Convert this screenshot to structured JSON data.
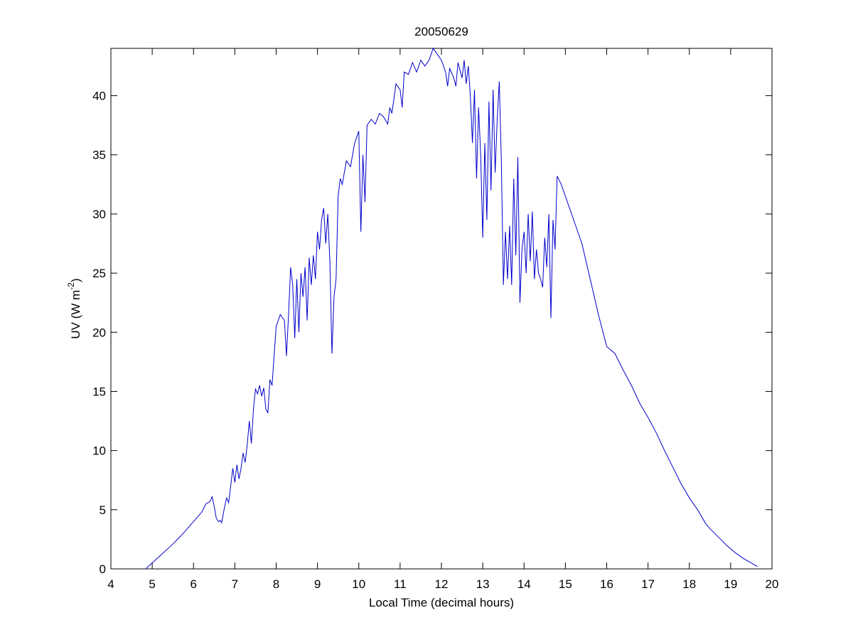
{
  "chart_data": {
    "type": "line",
    "title": "20050629",
    "xlabel": "Local Time (decimal hours)",
    "ylabel": [
      "UV (W m",
      "-2",
      ")"
    ],
    "xlim": [
      4,
      20
    ],
    "xticks": [
      4,
      5,
      6,
      7,
      8,
      9,
      10,
      11,
      12,
      13,
      14,
      15,
      16,
      17,
      18,
      19,
      20
    ],
    "ylim": [
      0,
      44
    ],
    "yticks": [
      0,
      5,
      10,
      15,
      20,
      25,
      30,
      35,
      40
    ],
    "series": [
      {
        "color": "#0000cc",
        "x": [
          4.85,
          4.9,
          5.0,
          5.25,
          5.5,
          5.75,
          6.0,
          6.2,
          6.3,
          6.4,
          6.45,
          6.5,
          6.55,
          6.6,
          6.65,
          6.68,
          6.75,
          6.8,
          6.85,
          6.9,
          6.95,
          7.0,
          7.05,
          7.1,
          7.15,
          7.2,
          7.25,
          7.3,
          7.35,
          7.4,
          7.45,
          7.5,
          7.55,
          7.6,
          7.65,
          7.7,
          7.75,
          7.8,
          7.85,
          7.9,
          7.95,
          8.0,
          8.1,
          8.2,
          8.25,
          8.3,
          8.35,
          8.4,
          8.45,
          8.5,
          8.55,
          8.6,
          8.65,
          8.7,
          8.75,
          8.8,
          8.85,
          8.9,
          8.95,
          9.0,
          9.05,
          9.1,
          9.15,
          9.2,
          9.25,
          9.3,
          9.35,
          9.4,
          9.45,
          9.5,
          9.55,
          9.6,
          9.7,
          9.8,
          9.85,
          9.9,
          10.0,
          10.05,
          10.1,
          10.15,
          10.2,
          10.3,
          10.4,
          10.5,
          10.6,
          10.7,
          10.75,
          10.8,
          10.9,
          11.0,
          11.05,
          11.1,
          11.2,
          11.3,
          11.4,
          11.5,
          11.6,
          11.7,
          11.8,
          11.9,
          12.0,
          12.1,
          12.15,
          12.2,
          12.3,
          12.35,
          12.4,
          12.5,
          12.55,
          12.6,
          12.65,
          12.7,
          12.75,
          12.8,
          12.85,
          12.9,
          12.95,
          13.0,
          13.05,
          13.1,
          13.15,
          13.2,
          13.25,
          13.3,
          13.35,
          13.4,
          13.45,
          13.5,
          13.55,
          13.6,
          13.65,
          13.7,
          13.75,
          13.8,
          13.85,
          13.9,
          13.95,
          14.0,
          14.05,
          14.1,
          14.15,
          14.2,
          14.25,
          14.3,
          14.35,
          14.4,
          14.45,
          14.5,
          14.55,
          14.6,
          14.65,
          14.7,
          14.75,
          14.8,
          14.9,
          15.0,
          15.2,
          15.4,
          15.6,
          15.8,
          16.0,
          16.2,
          16.4,
          16.6,
          16.8,
          17.0,
          17.2,
          17.4,
          17.6,
          17.8,
          18.0,
          18.2,
          18.4,
          18.5,
          18.7,
          18.9,
          19.1,
          19.3,
          19.5,
          19.65
        ],
        "values": [
          0,
          0.2,
          0.5,
          1.3,
          2.1,
          3.0,
          4.0,
          4.8,
          5.5,
          5.7,
          6.1,
          5.3,
          4.3,
          4.0,
          4.1,
          3.9,
          5.2,
          6.0,
          5.6,
          7.0,
          8.5,
          7.3,
          8.8,
          7.6,
          8.5,
          9.8,
          9.0,
          10.5,
          12.5,
          10.6,
          13.5,
          15.2,
          14.8,
          15.5,
          14.6,
          15.3,
          13.5,
          13.2,
          16.0,
          15.5,
          18.0,
          20.5,
          21.5,
          21.0,
          18.0,
          21.5,
          25.5,
          24.0,
          19.5,
          24.5,
          20.0,
          25.0,
          23.0,
          25.5,
          21.0,
          26.3,
          24.0,
          26.5,
          24.5,
          28.5,
          27.0,
          29.5,
          30.5,
          27.5,
          30.0,
          26.0,
          18.2,
          23.0,
          24.5,
          31.5,
          33.0,
          32.5,
          34.5,
          34.0,
          35.0,
          36.0,
          37.0,
          28.5,
          35.0,
          31.0,
          37.5,
          38.0,
          37.6,
          38.5,
          38.2,
          37.6,
          39.0,
          38.5,
          41.0,
          40.5,
          39.0,
          42.0,
          41.8,
          42.8,
          42.0,
          43.0,
          42.5,
          43.0,
          44.0,
          43.5,
          43.0,
          42.0,
          40.8,
          42.3,
          41.5,
          40.8,
          42.8,
          41.5,
          43.0,
          41.0,
          42.5,
          40.0,
          36.0,
          40.5,
          33.0,
          39.0,
          35.0,
          28.0,
          36.0,
          29.5,
          39.5,
          32.0,
          40.5,
          33.5,
          38.0,
          41.2,
          34.5,
          24.0,
          28.5,
          24.5,
          29.0,
          24.0,
          33.0,
          26.5,
          34.8,
          22.5,
          27.0,
          28.5,
          25.0,
          30.0,
          26.0,
          30.2,
          24.5,
          27.0,
          25.0,
          24.5,
          23.8,
          28.0,
          25.5,
          30.0,
          21.2,
          29.5,
          27.0,
          33.2,
          32.5,
          31.5,
          29.5,
          27.5,
          24.5,
          21.5,
          18.8,
          18.2,
          16.8,
          15.5,
          14.0,
          12.8,
          11.5,
          10.0,
          8.6,
          7.2,
          6.0,
          5.0,
          3.8,
          3.4,
          2.7,
          2.0,
          1.4,
          0.9,
          0.5,
          0.2
        ]
      }
    ]
  }
}
